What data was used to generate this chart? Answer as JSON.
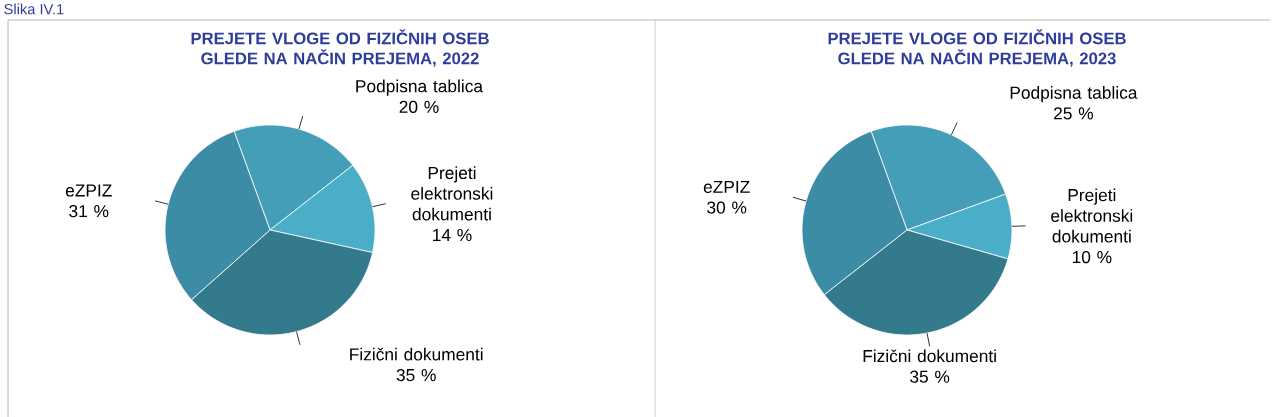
{
  "chart_data": [
    {
      "type": "pie",
      "title": "PREJETE VLOGE OD FIZIČNIH OSEB GLEDE NA NAČIN PREJEMA, 2022",
      "annotations": [
        "Slika IV.1"
      ],
      "categories": [
        "Podpisna tablica",
        "Prejeti elektronski dokumenti",
        "Fizični dokumenti",
        "eZPIZ"
      ],
      "values": [
        20,
        14,
        35,
        31
      ],
      "value_labels": [
        "20 %",
        "14 %",
        "35 %",
        "31 %"
      ],
      "colors": [
        "#459eb8",
        "#4aaec8",
        "#337b8c",
        "#3d8ca6"
      ]
    },
    {
      "type": "pie",
      "title": "PREJETE VLOGE OD FIZIČNIH OSEB GLEDE NA NAČIN PREJEMA, 2023",
      "categories": [
        "Podpisna tablica",
        "Prejeti elektronski dokumenti",
        "Fizični dokumenti",
        "eZPIZ"
      ],
      "values": [
        25,
        10,
        35,
        30
      ],
      "value_labels": [
        "25 %",
        "10 %",
        "35 %",
        "30 %"
      ],
      "colors": [
        "#459eb8",
        "#4aaec8",
        "#337b8c",
        "#3d8ca6"
      ]
    }
  ]
}
